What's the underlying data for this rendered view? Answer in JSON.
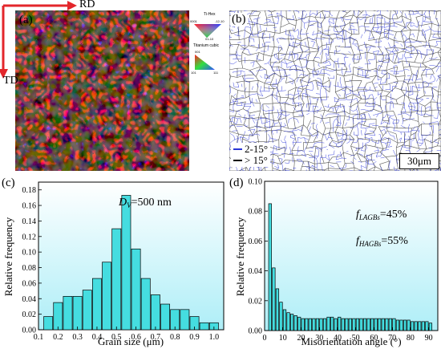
{
  "panels": {
    "a": {
      "label": "(a)",
      "rd_label": "RD",
      "td_label": "TD",
      "legend_hex": {
        "title": "Ti-Hex",
        "corner_top_left": "0001",
        "corner_top_right": "-12-10",
        "corner_bottom": "01-10"
      },
      "legend_cubic": {
        "title": "Titanium cubic",
        "top": "001",
        "bottom_left": "101",
        "bottom_right": "111"
      }
    },
    "b": {
      "label": "(b)",
      "legend": [
        {
          "text": "2-15°",
          "color": "#2a36d8"
        },
        {
          "text": "> 15°",
          "color": "#000000"
        }
      ],
      "scalebar": "30μm"
    },
    "c": {
      "label": "(c)",
      "annotation_main": "D",
      "annotation_sub": "V",
      "annotation_value": "=500 nm"
    },
    "d": {
      "label": "(d)",
      "annotation1_main": "f",
      "annotation1_sub": "LAGBs",
      "annotation1_value": "=45%",
      "annotation2_main": "f",
      "annotation2_sub": "HAGBs",
      "annotation2_value": "=55%"
    }
  },
  "chart_data": [
    {
      "type": "bar",
      "panel": "c",
      "xlabel": "Grain size (μm)",
      "ylabel": "Relative frequency",
      "xlim": [
        0.1,
        1.05
      ],
      "ylim": [
        0,
        0.19
      ],
      "xticks": [
        "0.1",
        "0.2",
        "0.3",
        "0.4",
        "0.5",
        "0.6",
        "0.7",
        "0.8",
        "0.9",
        "1.0"
      ],
      "yticks": [
        "0.00",
        "0.02",
        "0.04",
        "0.06",
        "0.08",
        "0.10",
        "0.12",
        "0.14",
        "0.16",
        "0.18"
      ],
      "bin_width": 0.05,
      "x": [
        0.15,
        0.2,
        0.25,
        0.3,
        0.35,
        0.4,
        0.45,
        0.5,
        0.55,
        0.6,
        0.65,
        0.7,
        0.75,
        0.8,
        0.85,
        0.9,
        0.95,
        1.0
      ],
      "values": [
        0.017,
        0.035,
        0.043,
        0.043,
        0.051,
        0.066,
        0.087,
        0.13,
        0.173,
        0.104,
        0.066,
        0.045,
        0.033,
        0.026,
        0.026,
        0.017,
        0.009,
        0.009
      ],
      "color": "#45dde0"
    },
    {
      "type": "bar",
      "panel": "d",
      "xlabel": "Misorientation angle (°)",
      "ylabel": "Relative frequency",
      "xlim": [
        0,
        95
      ],
      "ylim": [
        0,
        0.1
      ],
      "xticks": [
        "0",
        "10",
        "20",
        "30",
        "40",
        "50",
        "60",
        "70",
        "80",
        "90"
      ],
      "yticks": [
        "0.00",
        "0.02",
        "0.04",
        "0.06",
        "0.08",
        "0.10"
      ],
      "bin_width": 2,
      "x": [
        3,
        5,
        7,
        9,
        11,
        13,
        15,
        17,
        19,
        21,
        23,
        25,
        27,
        29,
        31,
        33,
        35,
        37,
        39,
        41,
        43,
        45,
        47,
        49,
        51,
        53,
        55,
        57,
        59,
        61,
        63,
        65,
        67,
        69,
        71,
        73,
        75,
        77,
        79,
        81,
        83,
        85,
        87,
        89,
        91
      ],
      "values": [
        0.085,
        0.042,
        0.028,
        0.019,
        0.014,
        0.012,
        0.011,
        0.01,
        0.009,
        0.008,
        0.008,
        0.008,
        0.008,
        0.008,
        0.008,
        0.008,
        0.009,
        0.009,
        0.008,
        0.009,
        0.008,
        0.008,
        0.008,
        0.008,
        0.008,
        0.008,
        0.008,
        0.008,
        0.008,
        0.008,
        0.008,
        0.008,
        0.008,
        0.008,
        0.008,
        0.007,
        0.007,
        0.007,
        0.007,
        0.006,
        0.006,
        0.006,
        0.006,
        0.006,
        0.005
      ],
      "color": "#45dde0"
    }
  ]
}
